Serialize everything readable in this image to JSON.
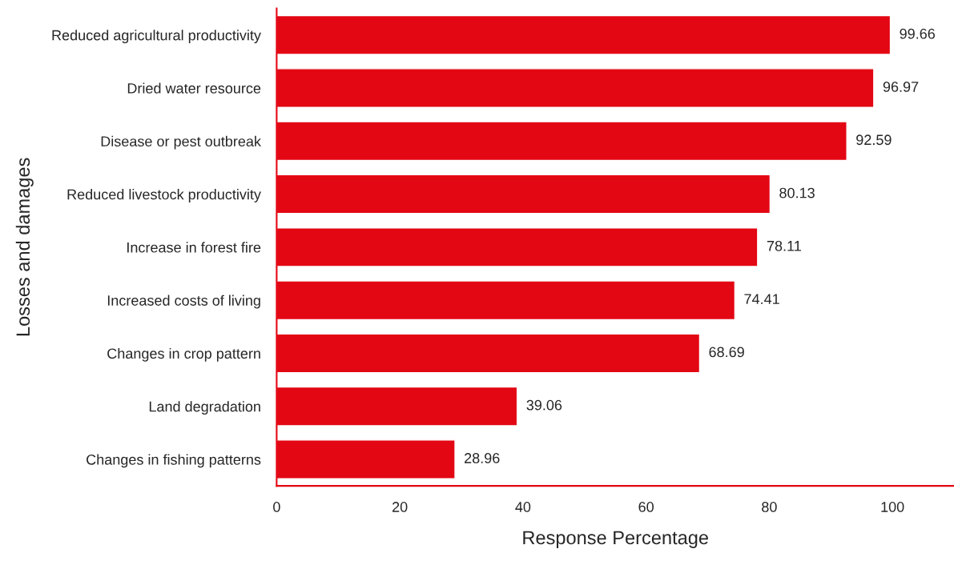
{
  "chart_data": {
    "type": "bar",
    "orientation": "horizontal",
    "xlabel": "Response Percentage",
    "ylabel": "Losses and damages",
    "categories": [
      "Reduced agricultural productivity",
      "Dried water resource",
      "Disease or pest outbreak",
      "Reduced livestock productivity",
      "Increase in forest fire",
      "Increased costs of living",
      "Changes in crop pattern",
      "Land degradation",
      "Changes in fishing patterns"
    ],
    "values": [
      99.66,
      96.97,
      92.59,
      80.13,
      78.11,
      74.41,
      68.69,
      39.06,
      28.96
    ],
    "color": "#e30613",
    "xlim": [
      0,
      110
    ],
    "xticks": [
      0,
      20,
      40,
      60,
      80,
      100
    ],
    "data_labels": true,
    "grid": false,
    "legend": false
  }
}
